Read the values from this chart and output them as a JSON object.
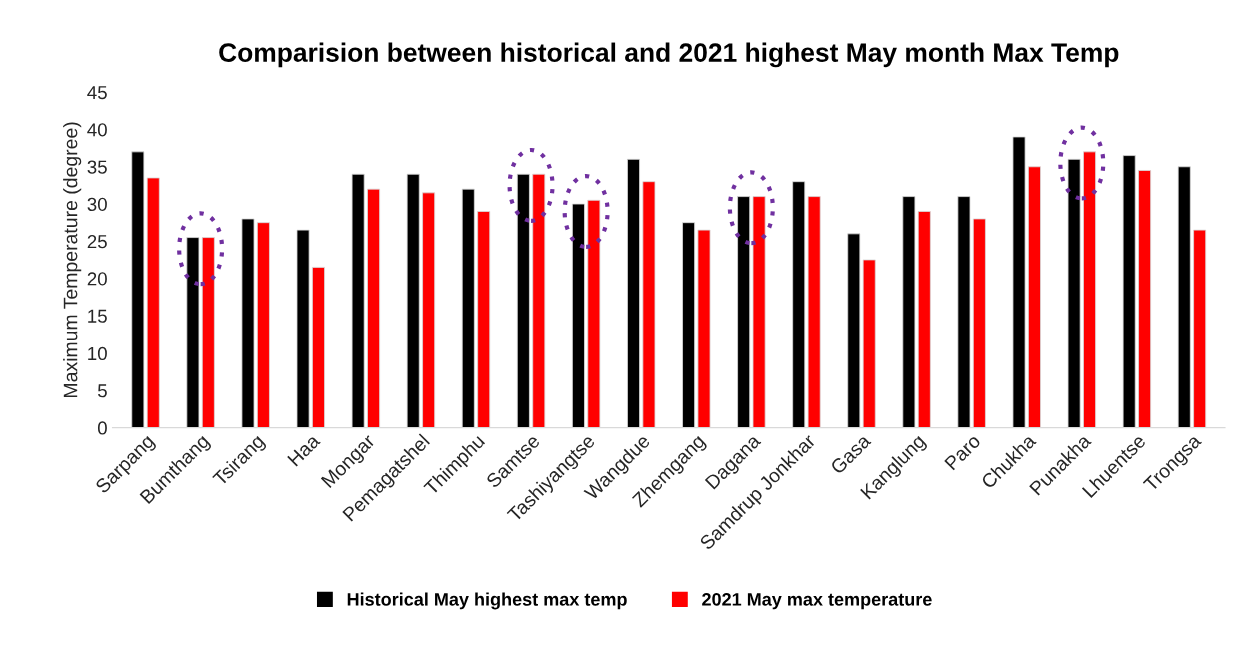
{
  "chart_data": {
    "type": "bar",
    "title": "Comparision between historical and 2021 highest May month Max Temp",
    "ylabel": "Maximum Temperature (degree)",
    "categories": [
      "Sarpang",
      "Bumthang",
      "Tsirang",
      "Haa",
      "Mongar",
      "Pemagatshel",
      "Thimphu",
      "Samtse",
      "Tashiyangtse",
      "Wangdue",
      "Zhemgang",
      "Dagana",
      "Samdrup Jonkhar",
      "Gasa",
      "Kanglung",
      "Paro",
      "Chukha",
      "Punakha",
      "Lhuentse",
      "Trongsa"
    ],
    "series": [
      {
        "name": "Historical May highest max temp",
        "color": "#000000",
        "values": [
          37,
          25.5,
          28,
          26.5,
          34,
          34,
          32,
          34,
          30,
          36,
          27.5,
          31,
          33,
          26,
          31,
          31,
          39,
          36,
          36.5,
          35
        ]
      },
      {
        "name": "2021 May max temperature",
        "color": "#ff0000",
        "values": [
          33.5,
          25.5,
          27.5,
          21.5,
          32,
          31.5,
          29,
          34,
          30.5,
          33,
          26.5,
          31,
          31,
          22.5,
          29,
          28,
          35,
          37,
          34.5,
          26.5
        ]
      }
    ],
    "ylim": [
      0,
      45
    ],
    "yticks": [
      0,
      5,
      10,
      15,
      20,
      25,
      30,
      35,
      40,
      45
    ],
    "grid": false,
    "legend": "bottom"
  }
}
